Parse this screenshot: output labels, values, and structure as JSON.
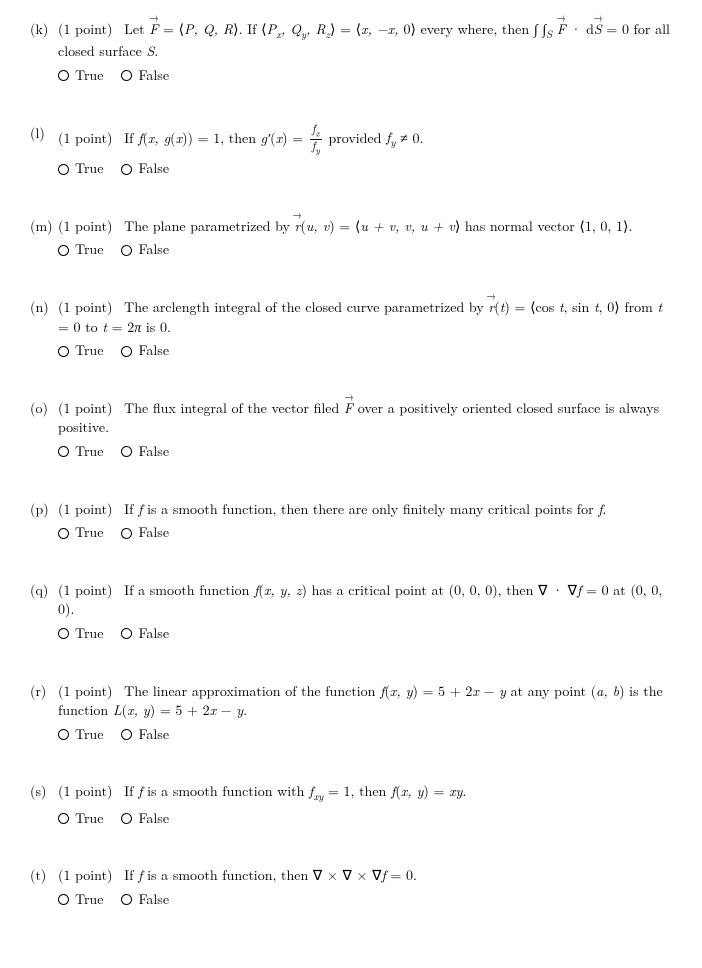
{
  "true_label": "True",
  "false_label": "False",
  "questions": [
    {
      "id": "k",
      "label": "(k)",
      "points": "(1 point)",
      "html": "Let <span class='vec math'>F</span> = ⟨<span class='math'>P, Q, R</span>⟩. If ⟨<span class='math'>P<sub>x</sub>, Q<sub>y</sub>, R<sub>z</sub></span>⟩ = ⟨<span class='math'>x, −x, </span>0⟩ every where, then ∫ ∫<sub class='math' style='font-style:italic'>S</sub> <span class='vec math'>F</span> · d<span class='vec math'>S</span> = 0 for all closed surface <span class='math'>S</span>."
    },
    {
      "id": "l",
      "label": "(l)",
      "points": "(1 point)",
      "html": "If <span class='math'>f</span>(<span class='math'>x, g</span>(<span class='math'>x</span>)) = 1, then <span class='math'>g′</span>(<span class='math'>x</span>) = <span class='frac'><span class='num math'>f<sub>x</sub></span><span class='den math'>f<sub>y</sub></span></span> provided <span class='math'>f<sub>y</sub></span> ≠ 0."
    },
    {
      "id": "m",
      "label": "(m)",
      "points": "(1 point)",
      "html": "The plane parametrized by <span class='vec math'>r</span>(<span class='math'>u, v</span>) = ⟨<span class='math'>u + v, v, u + v</span>⟩ has normal vector ⟨1, 0, 1⟩."
    },
    {
      "id": "n",
      "label": "(n)",
      "points": "(1 point)",
      "html": "The arclength integral of the closed curve parametrized by <span class='vec math'>r</span>(<span class='math'>t</span>) = ⟨cos <span class='math'>t</span>, sin <span class='math'>t</span>, 0⟩ from <span class='math'>t</span> = 0 to <span class='math'>t</span> = 2<span class='math'>π</span> is 0."
    },
    {
      "id": "o",
      "label": "(o)",
      "points": "(1 point)",
      "html": "The flux integral of the vector filed <span class='vec math'>F</span> over a positively oriented closed surface is always positive."
    },
    {
      "id": "p",
      "label": "(p)",
      "points": "(1 point)",
      "html": "If <span class='math'>f</span> is a smooth function, then there are only finitely many critical points for <span class='math'>f</span>."
    },
    {
      "id": "q",
      "label": "(q)",
      "points": "(1 point)",
      "html": "If a smooth function <span class='math'>f</span>(<span class='math'>x, y, z</span>) has a critical point at (0, 0, 0), then ∇ · ∇<span class='math'>f</span> = 0 at (0, 0, 0)."
    },
    {
      "id": "r",
      "label": "(r)",
      "points": "(1 point)",
      "html": "The linear approximation of the function <span class='math'>f</span>(<span class='math'>x, y</span>) = 5 + 2<span class='math'>x</span> − <span class='math'>y</span> at any point (<span class='math'>a, b</span>) is the function <span class='math'>L</span>(<span class='math'>x, y</span>) = 5 + 2<span class='math'>x</span> − <span class='math'>y</span>."
    },
    {
      "id": "s",
      "label": "(s)",
      "points": "(1 point)",
      "html": "If <span class='math'>f</span> is a smooth function with <span class='math'>f<sub>xy</sub></span> = 1, then <span class='math'>f</span>(<span class='math'>x, y</span>) = <span class='math'>xy</span>."
    },
    {
      "id": "t",
      "label": "(t)",
      "points": "(1 point)",
      "html": "If <span class='math'>f</span> is a smooth function, then ∇ × ∇ × ∇<span class='math'>f</span> = 0."
    }
  ]
}
